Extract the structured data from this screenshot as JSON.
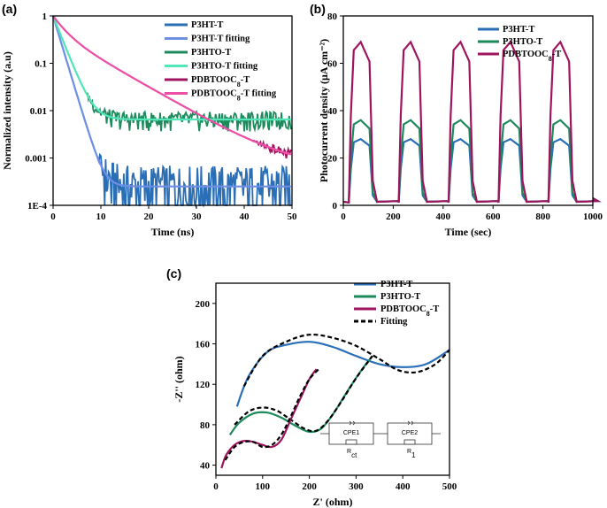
{
  "chart_data": [
    {
      "id": "a",
      "panel_label": "(a)",
      "type": "line",
      "xlabel": "Time (ns)",
      "ylabel": "Normalized intensity (a.u)",
      "yscale": "log",
      "xlim": [
        0,
        50
      ],
      "ylim": [
        0.0001,
        1
      ],
      "x_ticks": [
        "0",
        "10",
        "20",
        "30",
        "40",
        "50"
      ],
      "y_ticks": [
        "1",
        "0.1",
        "0.01",
        "0.001",
        "1E-4"
      ],
      "colors": {
        "p3ht": "#2a6eb5",
        "p3ht_fit": "#6f8fe6",
        "p3hto": "#1d8a5c",
        "p3hto_fit": "#52e6b8",
        "pdbt": "#a0145f",
        "pdbt_fit": "#ee4fa6"
      },
      "series": [
        {
          "name": "P3HT-T",
          "color_key": "p3ht",
          "floor": 0.00025,
          "tau": 1.3
        },
        {
          "name": "P3HT-T fitting",
          "color_key": "p3ht_fit",
          "floor": 0.00025,
          "tau": 1.3
        },
        {
          "name": "P3HTO-T",
          "color_key": "p3hto",
          "floor": 0.0065,
          "tau": 1.7
        },
        {
          "name": "P3HTO-T fitting",
          "color_key": "p3hto_fit",
          "floor": 0.0065,
          "tau": 1.7
        },
        {
          "name": "PDBTOOC8-T",
          "color_key": "pdbt",
          "floor": 0.0006,
          "tau": 5.5
        },
        {
          "name": "PDBTOOC8-T fitting",
          "color_key": "pdbt_fit",
          "floor": 0.0006,
          "tau": 5.5
        }
      ],
      "legend": [
        {
          "base": "P3HT-T",
          "sub": "",
          "tail": "",
          "color_key": "p3ht"
        },
        {
          "base": "P3HT-T fitting",
          "sub": "",
          "tail": "",
          "color_key": "p3ht_fit"
        },
        {
          "base": "P3HTO-T",
          "sub": "",
          "tail": "",
          "color_key": "p3hto"
        },
        {
          "base": "P3HTO-T fitting",
          "sub": "",
          "tail": "",
          "color_key": "p3hto_fit"
        },
        {
          "base": "PDBTOOC",
          "sub": "8",
          "tail": "-T",
          "color_key": "pdbt"
        },
        {
          "base": "PDBTOOC",
          "sub": "8",
          "tail": "-T fitting",
          "color_key": "pdbt_fit"
        }
      ]
    },
    {
      "id": "b",
      "panel_label": "(b)",
      "type": "line",
      "xlabel": "Time (sec)",
      "ylabel": "Photocurrent density (μA cm⁻²)",
      "xlim": [
        0,
        1000
      ],
      "ylim": [
        0,
        80
      ],
      "x_ticks": [
        "0",
        "200",
        "400",
        "600",
        "800",
        "1000"
      ],
      "y_ticks": [
        "0",
        "20",
        "40",
        "60",
        "80"
      ],
      "on_periods": [
        [
          30,
          110
        ],
        [
          230,
          310
        ],
        [
          430,
          510
        ],
        [
          630,
          710
        ],
        [
          830,
          910
        ]
      ],
      "series": [
        {
          "name": "P3HT-T",
          "color": "#2a6eb5",
          "peak": 28
        },
        {
          "name": "P3HTO-T",
          "color": "#1d8a5c",
          "peak": 36
        },
        {
          "name": "PDBTOOC8-T",
          "color": "#a0145f",
          "peak": 69
        }
      ],
      "legend": [
        {
          "base": "P3HT-T",
          "sub": "",
          "tail": "",
          "color": "#2a6eb5"
        },
        {
          "base": "P3HTO-T",
          "sub": "",
          "tail": "",
          "color": "#1d8a5c"
        },
        {
          "base": "PDBTOOC",
          "sub": "8",
          "tail": "-T",
          "color": "#a0145f"
        }
      ]
    },
    {
      "id": "c",
      "panel_label": "(c)",
      "type": "line",
      "xlabel": "Z' (ohm)",
      "ylabel": "-Z'' (ohm)",
      "xlim": [
        0,
        500
      ],
      "ylim": [
        30,
        220
      ],
      "x_ticks": [
        "0",
        "100",
        "200",
        "300",
        "400",
        "500"
      ],
      "y_ticks": [
        "40",
        "80",
        "120",
        "160",
        "200"
      ],
      "series": [
        {
          "name": "P3HT-T",
          "color": "#2a6eb5",
          "x": [
            45,
            70,
            110,
            150,
            200,
            250,
            300,
            350,
            400,
            450,
            500
          ],
          "y": [
            98,
            128,
            152,
            159,
            162,
            157,
            148,
            140,
            137,
            140,
            154
          ]
        },
        {
          "name": "P3HT-T fit",
          "color": "#000000",
          "dashed": true,
          "x": [
            60,
            100,
            150,
            200,
            250,
            300,
            350,
            390,
            430,
            470,
            500
          ],
          "y": [
            118,
            148,
            162,
            169,
            166,
            158,
            145,
            134,
            132,
            140,
            154
          ]
        },
        {
          "name": "P3HTO-T",
          "color": "#1d8a5c",
          "x": [
            30,
            50,
            80,
            110,
            140,
            170,
            200,
            225,
            250,
            280,
            310,
            335
          ],
          "y": [
            70,
            82,
            91,
            92,
            87,
            79,
            73,
            76,
            90,
            112,
            133,
            148
          ]
        },
        {
          "name": "P3HTO-T fit",
          "color": "#000000",
          "dashed": true,
          "x": [
            40,
            70,
            100,
            130,
            160,
            190,
            215,
            240,
            270,
            300,
            335
          ],
          "y": [
            80,
            93,
            97,
            94,
            85,
            76,
            74,
            84,
            104,
            126,
            148
          ]
        },
        {
          "name": "PDBTOOC8-T",
          "color": "#a0145f",
          "x": [
            12,
            22,
            40,
            60,
            80,
            100,
            120,
            140,
            160,
            180,
            200,
            215
          ],
          "y": [
            37,
            50,
            60,
            64,
            63,
            60,
            58,
            65,
            85,
            105,
            125,
            135
          ]
        },
        {
          "name": "PDBTOOC8-T fit",
          "color": "#000000",
          "dashed": true,
          "x": [
            20,
            40,
            60,
            80,
            100,
            120,
            140,
            160,
            180,
            200,
            220
          ],
          "y": [
            45,
            58,
            63,
            63,
            58,
            60,
            70,
            88,
            108,
            125,
            135
          ]
        }
      ],
      "legend": [
        {
          "base": "P3HT-T",
          "sub": "",
          "tail": "",
          "color": "#2a6eb5",
          "dashed": false
        },
        {
          "base": "P3HTO-T",
          "sub": "",
          "tail": "",
          "color": "#1d8a5c",
          "dashed": false
        },
        {
          "base": "PDBTOOC",
          "sub": "8",
          "tail": "-T",
          "color": "#a0145f",
          "dashed": false
        },
        {
          "base": "Fitting",
          "sub": "",
          "tail": "",
          "color": "#000000",
          "dashed": true
        }
      ],
      "circuit": {
        "cpe1": "CPE1",
        "cpe2": "CPE2",
        "r1": "R",
        "r1_sub": "ct",
        "r2": "R",
        "r2_sub": "1"
      }
    }
  ]
}
